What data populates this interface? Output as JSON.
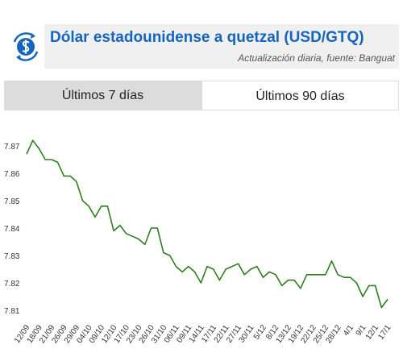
{
  "header": {
    "title": "Dólar estadounidense a quetzal (USD/GTQ)",
    "subtitle": "Actualización diaria, fuente: Banguat"
  },
  "tabs": [
    "Últimos 7 días",
    "Últimos 90 días"
  ],
  "chart_data": {
    "type": "line",
    "color": "#2e7d1e",
    "categories": [
      "12/09",
      null,
      "18/09",
      null,
      "21/09",
      null,
      "26/09",
      null,
      "29/09",
      null,
      "04/10",
      null,
      "09/10",
      null,
      "12/10",
      null,
      "17/10",
      null,
      "23/10",
      null,
      "26/10",
      null,
      "31/10",
      null,
      "06/11",
      null,
      "09/11",
      null,
      "14/11",
      null,
      "17/11",
      null,
      "22/11",
      null,
      "27/11",
      null,
      "30/11",
      null,
      "5/12",
      null,
      "8/12",
      null,
      "13/12",
      null,
      "19/12",
      null,
      "22/12",
      null,
      "25/12",
      null,
      "28/12",
      null,
      "4/1",
      null,
      "9/1",
      null,
      "12/1",
      null,
      "17/1"
    ],
    "values": [
      7.867,
      7.872,
      7.869,
      7.865,
      7.865,
      7.864,
      7.859,
      7.859,
      7.857,
      7.85,
      7.848,
      7.844,
      7.848,
      7.848,
      7.839,
      7.841,
      7.838,
      7.837,
      7.836,
      7.834,
      7.84,
      7.84,
      7.831,
      7.83,
      7.826,
      7.824,
      7.826,
      7.824,
      7.82,
      7.826,
      7.825,
      7.821,
      7.825,
      7.826,
      7.827,
      7.823,
      7.825,
      7.826,
      7.822,
      7.824,
      7.823,
      7.819,
      7.821,
      7.821,
      7.818,
      7.823,
      7.823,
      7.823,
      7.823,
      7.828,
      7.823,
      7.822,
      7.822,
      7.82,
      7.815,
      7.819,
      7.819,
      7.811,
      7.814
    ],
    "ylim": [
      7.805,
      7.875
    ],
    "yticks": [
      7.81,
      7.82,
      7.83,
      7.84,
      7.85,
      7.86,
      7.87
    ],
    "grid": false
  }
}
